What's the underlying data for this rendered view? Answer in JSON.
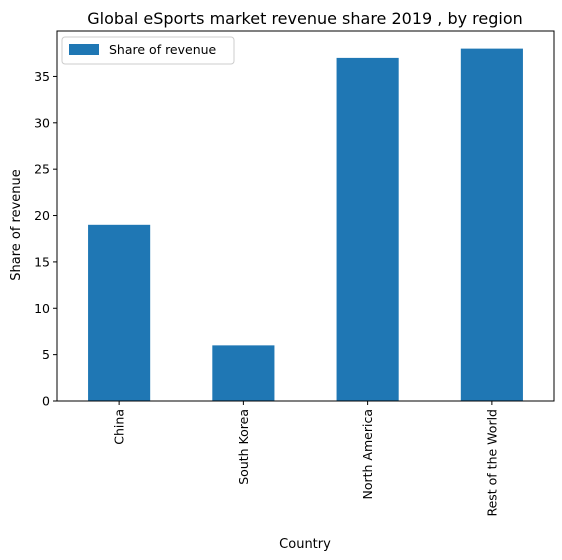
{
  "chart_data": {
    "type": "bar",
    "title": "Global eSports market revenue share 2019 , by region",
    "xlabel": "Country",
    "ylabel": "Share of revenue",
    "categories": [
      "China",
      "South Korea",
      "North America",
      "Rest of the World"
    ],
    "series": [
      {
        "name": "Share of revenue",
        "values": [
          19,
          6,
          37,
          38
        ]
      }
    ],
    "ylim": [
      0,
      39.9
    ],
    "yticks": [
      0,
      5,
      10,
      15,
      20,
      25,
      30,
      35
    ],
    "grid": false,
    "legend_position": "top-left",
    "bar_color": "#1f77b4"
  }
}
